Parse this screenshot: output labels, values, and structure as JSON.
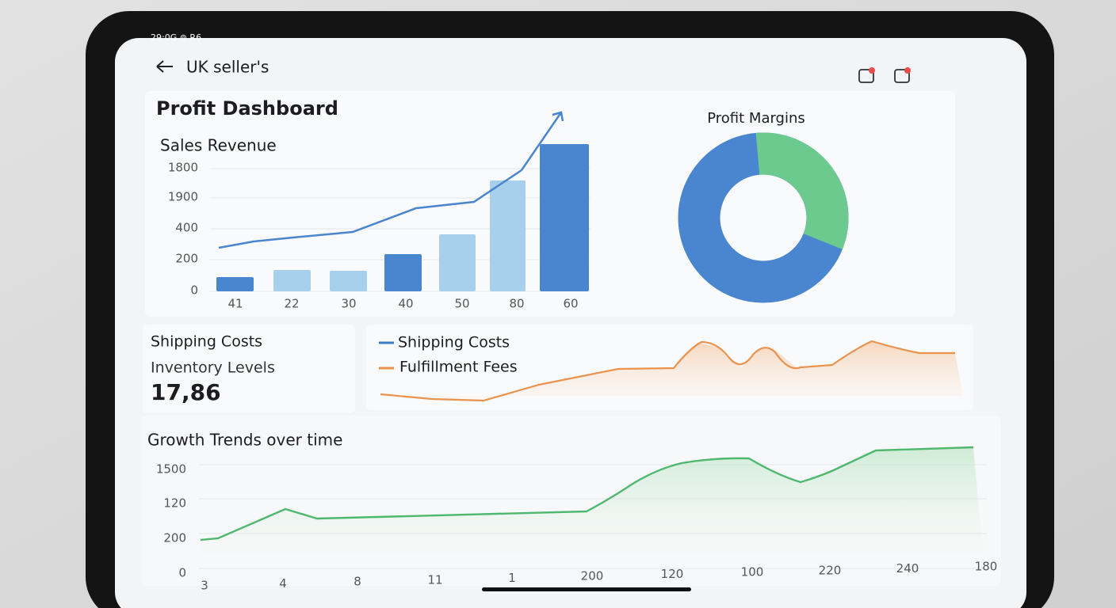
{
  "status_bar": {
    "left": "29:0G ⊚ R6"
  },
  "header": {
    "title": "UK seller's"
  },
  "sales_panel": {
    "title": "Profit Dashboard",
    "chart_title": "Sales Revenue",
    "y_labels": [
      "1800",
      "1900",
      "400",
      "200",
      "0"
    ],
    "x_labels": [
      "41",
      "22",
      "30",
      "40",
      "50",
      "80",
      "60"
    ]
  },
  "margins": {
    "title": "Profit Margins"
  },
  "summary": {
    "line1": "Shipping Costs",
    "line2": "Inventory Levels",
    "value": "17,86"
  },
  "costs_chart": {
    "legend": [
      "Shipping Costs",
      "Fulfillment Fees"
    ]
  },
  "growth": {
    "title": "Growth Trends over time",
    "y_labels": [
      "1500",
      "120",
      "200",
      "0"
    ],
    "x_labels": [
      "3",
      "4",
      "8",
      "11",
      "1",
      "200",
      "120",
      "100",
      "220",
      "240",
      "180"
    ]
  }
}
